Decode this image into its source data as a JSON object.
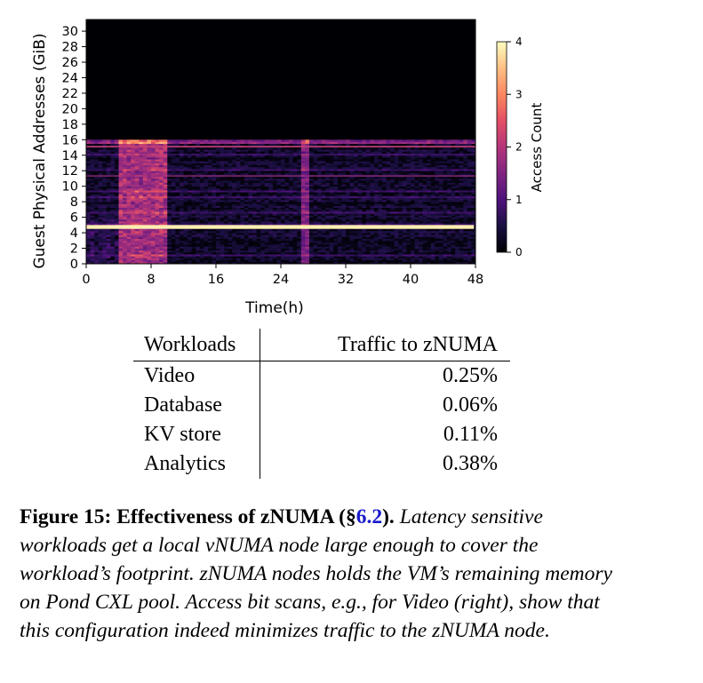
{
  "chart_data": {
    "type": "heatmap",
    "xlabel": "Time(h)",
    "ylabel": "Guest Physical Addresses (GiB)",
    "x_ticks": [
      0,
      8,
      16,
      24,
      32,
      40,
      48
    ],
    "y_ticks": [
      0,
      2,
      4,
      6,
      8,
      10,
      12,
      14,
      16,
      18,
      20,
      22,
      24,
      26,
      28,
      30
    ],
    "xlim": [
      0,
      48
    ],
    "ylim": [
      0,
      31.5
    ],
    "colormap": "magma",
    "colorbar": {
      "label": "Access Count",
      "ticks": [
        0,
        1,
        2,
        3,
        4
      ],
      "range": [
        0,
        4
      ]
    },
    "approx_regions": [
      {
        "time_h": [
          0,
          48
        ],
        "gib": [
          16,
          31.5
        ],
        "access": 0
      },
      {
        "time_h": [
          0,
          48
        ],
        "gib": [
          0,
          16
        ],
        "access": 0.4
      },
      {
        "time_h": [
          0,
          48
        ],
        "gib": [
          4.5,
          5
        ],
        "access": 3.9
      },
      {
        "time_h": [
          4,
          10
        ],
        "gib": [
          0,
          16
        ],
        "access": 1.6
      },
      {
        "time_h": [
          27,
          28
        ],
        "gib": [
          0,
          16
        ],
        "access": 1.4
      }
    ]
  },
  "table": {
    "headers": [
      "Workloads",
      "Traffic to zNUMA"
    ],
    "rows": [
      [
        "Video",
        "0.25%"
      ],
      [
        "Database",
        "0.06%"
      ],
      [
        "KV store",
        "0.11%"
      ],
      [
        "Analytics",
        "0.38%"
      ]
    ]
  },
  "caption": {
    "label": "Figure 15:",
    "title": "Effectiveness of zNUMA (§",
    "link": "6.2",
    "title_end": ").",
    "body": "Latency sensitive workloads get a local vNUMA node large enough to cover the workload’s footprint. zNUMA nodes holds the VM’s remaining memory on Pond CXL pool. Access bit scans, e.g., for Video (right), show that this configuration indeed minimizes traffic to the zNUMA node."
  }
}
